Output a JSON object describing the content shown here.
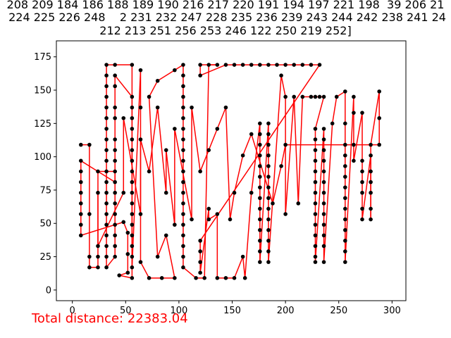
{
  "title_lines": [
    "208 209 184 186 188 189 190 216 217 220 191 194 197 221 198  39 206 21",
    " 224 225 226 248    2 231 232 247 228 235 236 239 243 244 242 238 241 24",
    "212 213 251 256 253 246 122 250 219 252]"
  ],
  "footer_text": "Total distance: 22383.04",
  "chart_data": {
    "type": "scatter",
    "subtype": "tour-path",
    "xlim": [
      -15,
      313
    ],
    "ylim": [
      -8,
      187
    ],
    "xticks": [
      0,
      50,
      100,
      150,
      200,
      250,
      300
    ],
    "yticks": [
      0,
      25,
      50,
      75,
      100,
      125,
      150,
      175
    ],
    "grid": false,
    "point_color": "#000000",
    "line_color": "#ff0000",
    "points": [
      [
        8,
        109
      ],
      [
        16,
        109
      ],
      [
        8,
        97
      ],
      [
        8,
        89
      ],
      [
        8,
        81
      ],
      [
        8,
        73
      ],
      [
        8,
        65
      ],
      [
        8,
        57
      ],
      [
        8,
        49
      ],
      [
        8,
        41
      ],
      [
        16,
        57
      ],
      [
        16,
        25
      ],
      [
        16,
        17
      ],
      [
        24,
        89
      ],
      [
        24,
        25
      ],
      [
        24,
        17
      ],
      [
        32,
        169
      ],
      [
        32,
        161
      ],
      [
        32,
        153
      ],
      [
        32,
        145
      ],
      [
        32,
        137
      ],
      [
        32,
        129
      ],
      [
        32,
        121
      ],
      [
        32,
        113
      ],
      [
        32,
        105
      ],
      [
        32,
        97
      ],
      [
        32,
        89
      ],
      [
        32,
        81
      ],
      [
        32,
        73
      ],
      [
        32,
        65
      ],
      [
        32,
        57
      ],
      [
        32,
        49
      ],
      [
        32,
        41
      ],
      [
        32,
        33
      ],
      [
        32,
        25
      ],
      [
        32,
        17
      ],
      [
        40,
        169
      ],
      [
        40,
        161
      ],
      [
        40,
        153
      ],
      [
        40,
        137
      ],
      [
        40,
        129
      ],
      [
        40,
        113
      ],
      [
        40,
        105
      ],
      [
        40,
        97
      ],
      [
        40,
        89
      ],
      [
        40,
        81
      ],
      [
        40,
        73
      ],
      [
        40,
        65
      ],
      [
        40,
        57
      ],
      [
        40,
        49
      ],
      [
        40,
        41
      ],
      [
        40,
        33
      ],
      [
        40,
        25
      ],
      [
        44,
        11
      ],
      [
        48,
        51
      ],
      [
        52,
        43
      ],
      [
        52,
        27
      ],
      [
        52,
        13
      ],
      [
        56,
        169
      ],
      [
        56,
        145
      ],
      [
        56,
        137
      ],
      [
        56,
        129
      ],
      [
        56,
        121
      ],
      [
        56,
        113
      ],
      [
        56,
        105
      ],
      [
        56,
        97
      ],
      [
        56,
        89
      ],
      [
        56,
        81
      ],
      [
        56,
        73
      ],
      [
        56,
        65
      ],
      [
        56,
        57
      ],
      [
        56,
        49
      ],
      [
        56,
        41
      ],
      [
        56,
        33
      ],
      [
        56,
        25
      ],
      [
        56,
        17
      ],
      [
        56,
        9
      ],
      [
        64,
        165
      ],
      [
        64,
        137
      ],
      [
        64,
        21
      ],
      [
        72,
        145
      ],
      [
        72,
        9
      ],
      [
        80,
        157
      ],
      [
        80,
        25
      ],
      [
        84,
        9
      ],
      [
        88,
        41
      ],
      [
        96,
        165
      ],
      [
        104,
        169
      ],
      [
        104,
        161
      ],
      [
        104,
        153
      ],
      [
        104,
        145
      ],
      [
        104,
        137
      ],
      [
        104,
        129
      ],
      [
        104,
        121
      ],
      [
        104,
        113
      ],
      [
        104,
        105
      ],
      [
        104,
        97
      ],
      [
        104,
        89
      ],
      [
        104,
        81
      ],
      [
        104,
        73
      ],
      [
        104,
        65
      ],
      [
        104,
        57
      ],
      [
        104,
        49
      ],
      [
        104,
        41
      ],
      [
        104,
        33
      ],
      [
        104,
        25
      ],
      [
        104,
        17
      ],
      [
        96,
        9
      ],
      [
        120,
        169
      ],
      [
        120,
        161
      ],
      [
        116,
        9
      ],
      [
        124,
        9
      ],
      [
        128,
        169
      ],
      [
        136,
        169
      ],
      [
        144,
        169
      ],
      [
        152,
        169
      ],
      [
        160,
        169
      ],
      [
        168,
        169
      ],
      [
        176,
        169
      ],
      [
        184,
        169
      ],
      [
        192,
        169
      ],
      [
        200,
        169
      ],
      [
        208,
        169
      ],
      [
        216,
        169
      ],
      [
        224,
        169
      ],
      [
        232,
        169
      ],
      [
        120,
        37
      ],
      [
        120,
        29
      ],
      [
        120,
        21
      ],
      [
        120,
        13
      ],
      [
        128,
        61
      ],
      [
        128,
        53
      ],
      [
        136,
        57
      ],
      [
        136,
        9
      ],
      [
        144,
        9
      ],
      [
        152,
        9
      ],
      [
        160,
        25
      ],
      [
        162,
        9
      ],
      [
        168,
        73
      ],
      [
        176,
        125
      ],
      [
        176,
        117
      ],
      [
        176,
        109
      ],
      [
        176,
        101
      ],
      [
        176,
        93
      ],
      [
        176,
        85
      ],
      [
        176,
        77
      ],
      [
        176,
        69
      ],
      [
        176,
        61
      ],
      [
        176,
        53
      ],
      [
        176,
        45
      ],
      [
        176,
        37
      ],
      [
        176,
        29
      ],
      [
        176,
        21
      ],
      [
        184,
        125
      ],
      [
        184,
        117
      ],
      [
        184,
        109
      ],
      [
        184,
        101
      ],
      [
        184,
        93
      ],
      [
        184,
        85
      ],
      [
        184,
        77
      ],
      [
        184,
        69
      ],
      [
        184,
        61
      ],
      [
        184,
        53
      ],
      [
        184,
        45
      ],
      [
        184,
        37
      ],
      [
        184,
        29
      ],
      [
        184,
        21
      ],
      [
        196,
        161
      ],
      [
        200,
        145
      ],
      [
        200,
        57
      ],
      [
        208,
        145
      ],
      [
        212,
        65
      ],
      [
        216,
        145
      ],
      [
        224,
        145
      ],
      [
        228,
        145
      ],
      [
        232,
        145
      ],
      [
        236,
        145
      ],
      [
        228,
        121
      ],
      [
        228,
        113
      ],
      [
        228,
        105
      ],
      [
        228,
        97
      ],
      [
        228,
        89
      ],
      [
        228,
        81
      ],
      [
        228,
        73
      ],
      [
        228,
        65
      ],
      [
        228,
        57
      ],
      [
        228,
        49
      ],
      [
        228,
        41
      ],
      [
        228,
        33
      ],
      [
        228,
        25
      ],
      [
        228,
        21
      ],
      [
        236,
        121
      ],
      [
        236,
        113
      ],
      [
        236,
        105
      ],
      [
        236,
        97
      ],
      [
        236,
        89
      ],
      [
        236,
        81
      ],
      [
        236,
        73
      ],
      [
        236,
        65
      ],
      [
        236,
        57
      ],
      [
        236,
        49
      ],
      [
        236,
        41
      ],
      [
        236,
        33
      ],
      [
        236,
        21
      ],
      [
        244,
        125
      ],
      [
        248,
        145
      ],
      [
        256,
        149
      ],
      [
        256,
        125
      ],
      [
        256,
        109
      ],
      [
        256,
        101
      ],
      [
        256,
        93
      ],
      [
        256,
        85
      ],
      [
        256,
        77
      ],
      [
        256,
        69
      ],
      [
        256,
        61
      ],
      [
        256,
        53
      ],
      [
        256,
        45
      ],
      [
        256,
        37
      ],
      [
        256,
        29
      ],
      [
        256,
        21
      ],
      [
        264,
        145
      ],
      [
        264,
        133
      ],
      [
        264,
        109
      ],
      [
        264,
        97
      ],
      [
        272,
        133
      ],
      [
        272,
        97
      ],
      [
        272,
        89
      ],
      [
        272,
        81
      ],
      [
        272,
        73
      ],
      [
        272,
        61
      ],
      [
        272,
        53
      ],
      [
        280,
        101
      ],
      [
        280,
        89
      ],
      [
        280,
        81
      ],
      [
        280,
        73
      ],
      [
        280,
        61
      ],
      [
        280,
        53
      ],
      [
        280,
        109
      ],
      [
        288,
        149
      ],
      [
        288,
        129
      ],
      [
        288,
        109
      ],
      [
        200,
        109
      ],
      [
        196,
        93
      ],
      [
        188,
        65
      ],
      [
        168,
        117
      ],
      [
        160,
        101
      ],
      [
        152,
        73
      ],
      [
        148,
        53
      ],
      [
        144,
        137
      ],
      [
        136,
        121
      ],
      [
        128,
        105
      ],
      [
        120,
        89
      ],
      [
        112,
        137
      ],
      [
        112,
        53
      ],
      [
        96,
        121
      ],
      [
        96,
        49
      ],
      [
        88,
        105
      ],
      [
        88,
        73
      ],
      [
        80,
        137
      ],
      [
        72,
        89
      ],
      [
        64,
        113
      ],
      [
        64,
        57
      ],
      [
        48,
        129
      ],
      [
        48,
        73
      ],
      [
        24,
        33
      ],
      [
        24,
        73
      ]
    ],
    "tour": [
      0,
      1,
      10,
      11,
      12,
      15,
      14,
      13,
      26,
      44,
      45,
      2,
      3,
      4,
      5,
      6,
      7,
      8,
      9,
      54,
      55,
      56,
      57,
      53,
      76,
      74,
      72,
      70,
      68,
      66,
      64,
      62,
      60,
      58,
      36,
      16,
      17,
      18,
      19,
      20,
      21,
      22,
      23,
      24,
      25,
      27,
      28,
      29,
      30,
      31,
      32,
      33,
      34,
      35,
      52,
      51,
      50,
      49,
      48,
      47,
      46,
      43,
      42,
      41,
      40,
      39,
      38,
      37,
      59,
      61,
      63,
      65,
      67,
      69,
      71,
      73,
      75,
      77,
      79,
      81,
      84,
      107,
      85,
      83,
      80,
      82,
      86,
      87,
      88,
      89,
      90,
      91,
      92,
      93,
      94,
      95,
      96,
      97,
      98,
      99,
      100,
      101,
      102,
      103,
      104,
      105,
      106,
      110,
      111,
      112,
      113,
      108,
      109,
      114,
      115,
      116,
      117,
      118,
      119,
      120,
      121,
      122,
      123,
      124,
      125,
      126,
      127,
      128,
      129,
      130,
      131,
      132,
      133,
      134,
      135,
      136,
      137,
      138,
      139,
      140,
      141,
      142,
      143,
      144,
      145,
      146,
      147,
      148,
      149,
      150,
      151,
      152,
      153,
      154,
      155,
      156,
      157,
      158,
      159,
      160,
      161,
      162,
      163,
      164,
      165,
      166,
      167,
      168,
      169,
      170,
      171,
      172,
      173,
      174,
      175,
      176,
      177,
      178,
      179,
      180,
      181,
      182,
      183,
      184,
      185,
      186,
      187,
      188,
      189,
      190,
      191,
      192,
      193,
      194,
      195,
      196,
      197,
      198,
      199,
      200,
      201,
      202,
      203,
      204,
      205,
      206,
      207,
      208,
      209,
      210,
      211,
      212,
      213,
      214,
      215,
      216,
      217,
      218,
      219,
      220,
      221,
      222,
      223,
      224,
      225,
      226,
      227,
      228,
      229,
      230,
      231,
      232,
      233,
      234,
      235,
      236,
      237,
      238,
      239,
      240,
      241,
      242,
      243,
      244,
      245,
      246,
      247,
      248,
      249,
      250,
      251,
      252,
      253,
      254,
      255,
      256,
      257,
      258,
      259,
      260,
      261,
      262,
      263,
      264,
      265,
      266,
      267,
      268,
      269,
      270,
      271,
      272,
      273,
      274,
      275,
      276,
      277,
      278,
      279,
      0
    ]
  }
}
